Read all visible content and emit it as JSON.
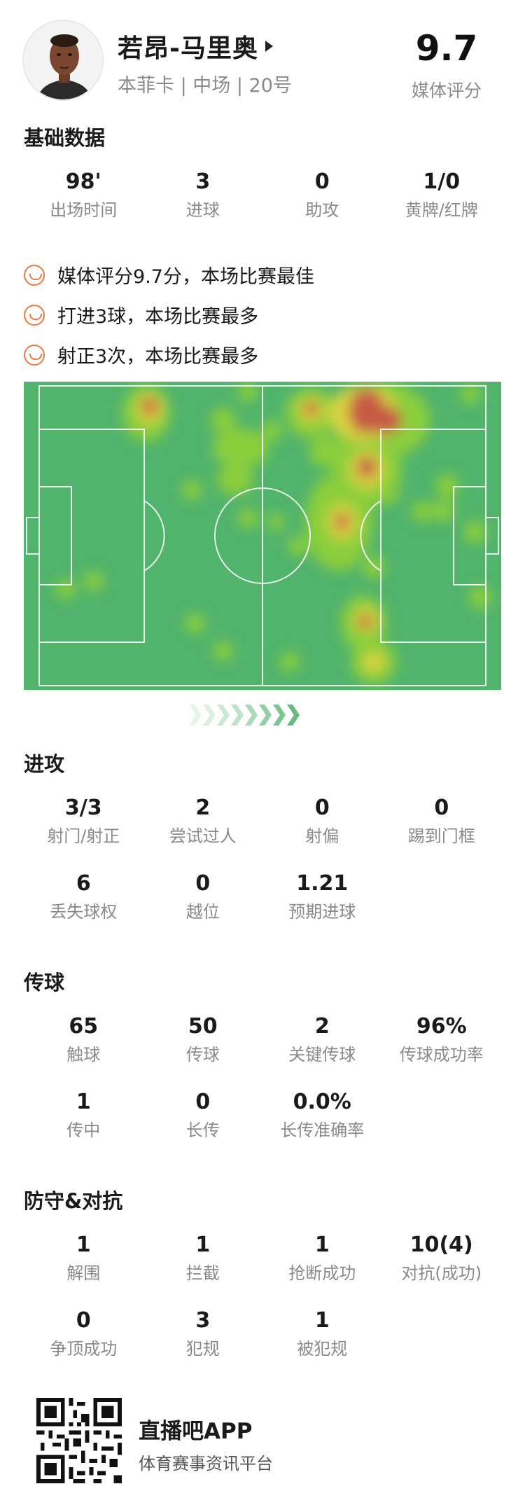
{
  "player": {
    "name": "若昂-马里奥",
    "meta": "本菲卡 | 中场 | 20号",
    "rating": "9.7",
    "rating_label": "媒体评分"
  },
  "sections": {
    "basic": "基础数据",
    "attack": "进攻",
    "passing": "传球",
    "defense": "防守&对抗"
  },
  "basic_stats": [
    {
      "value": "98'",
      "label": "出场时间"
    },
    {
      "value": "3",
      "label": "进球"
    },
    {
      "value": "0",
      "label": "助攻"
    },
    {
      "value": "1/0",
      "label": "黄牌/红牌"
    }
  ],
  "highlights": [
    "媒体评分9.7分，本场比赛最佳",
    "打进3球，本场比赛最多",
    "射正3次，本场比赛最多"
  ],
  "attack_stats": [
    [
      {
        "value": "3/3",
        "label": "射门/射正"
      },
      {
        "value": "2",
        "label": "尝试过人"
      },
      {
        "value": "0",
        "label": "射偏"
      },
      {
        "value": "0",
        "label": "踢到门框"
      }
    ],
    [
      {
        "value": "6",
        "label": "丢失球权"
      },
      {
        "value": "0",
        "label": "越位"
      },
      {
        "value": "1.21",
        "label": "预期进球"
      }
    ]
  ],
  "passing_stats": [
    [
      {
        "value": "65",
        "label": "触球"
      },
      {
        "value": "50",
        "label": "传球"
      },
      {
        "value": "2",
        "label": "关键传球"
      },
      {
        "value": "96%",
        "label": "传球成功率"
      }
    ],
    [
      {
        "value": "1",
        "label": "传中"
      },
      {
        "value": "0",
        "label": "长传"
      },
      {
        "value": "0.0%",
        "label": "长传准确率"
      }
    ]
  ],
  "defense_stats": [
    [
      {
        "value": "1",
        "label": "解围"
      },
      {
        "value": "1",
        "label": "拦截"
      },
      {
        "value": "1",
        "label": "抢断成功"
      },
      {
        "value": "10(4)",
        "label": "对抗(成功)"
      }
    ],
    [
      {
        "value": "0",
        "label": "争顶成功"
      },
      {
        "value": "3",
        "label": "犯规"
      },
      {
        "value": "1",
        "label": "被犯规"
      }
    ]
  ],
  "footer": {
    "app_name": "直播吧APP",
    "tagline": "体育赛事资讯平台"
  },
  "colors": {
    "pitch": "#51b36c",
    "accent": "#ee7a42",
    "heat_hot": "#c85a45",
    "heat_warm": "#9ad63a"
  },
  "icons": [
    "smile-icon",
    "caret-right-icon",
    "chevron-right-icon",
    "qr-code-icon"
  ]
}
